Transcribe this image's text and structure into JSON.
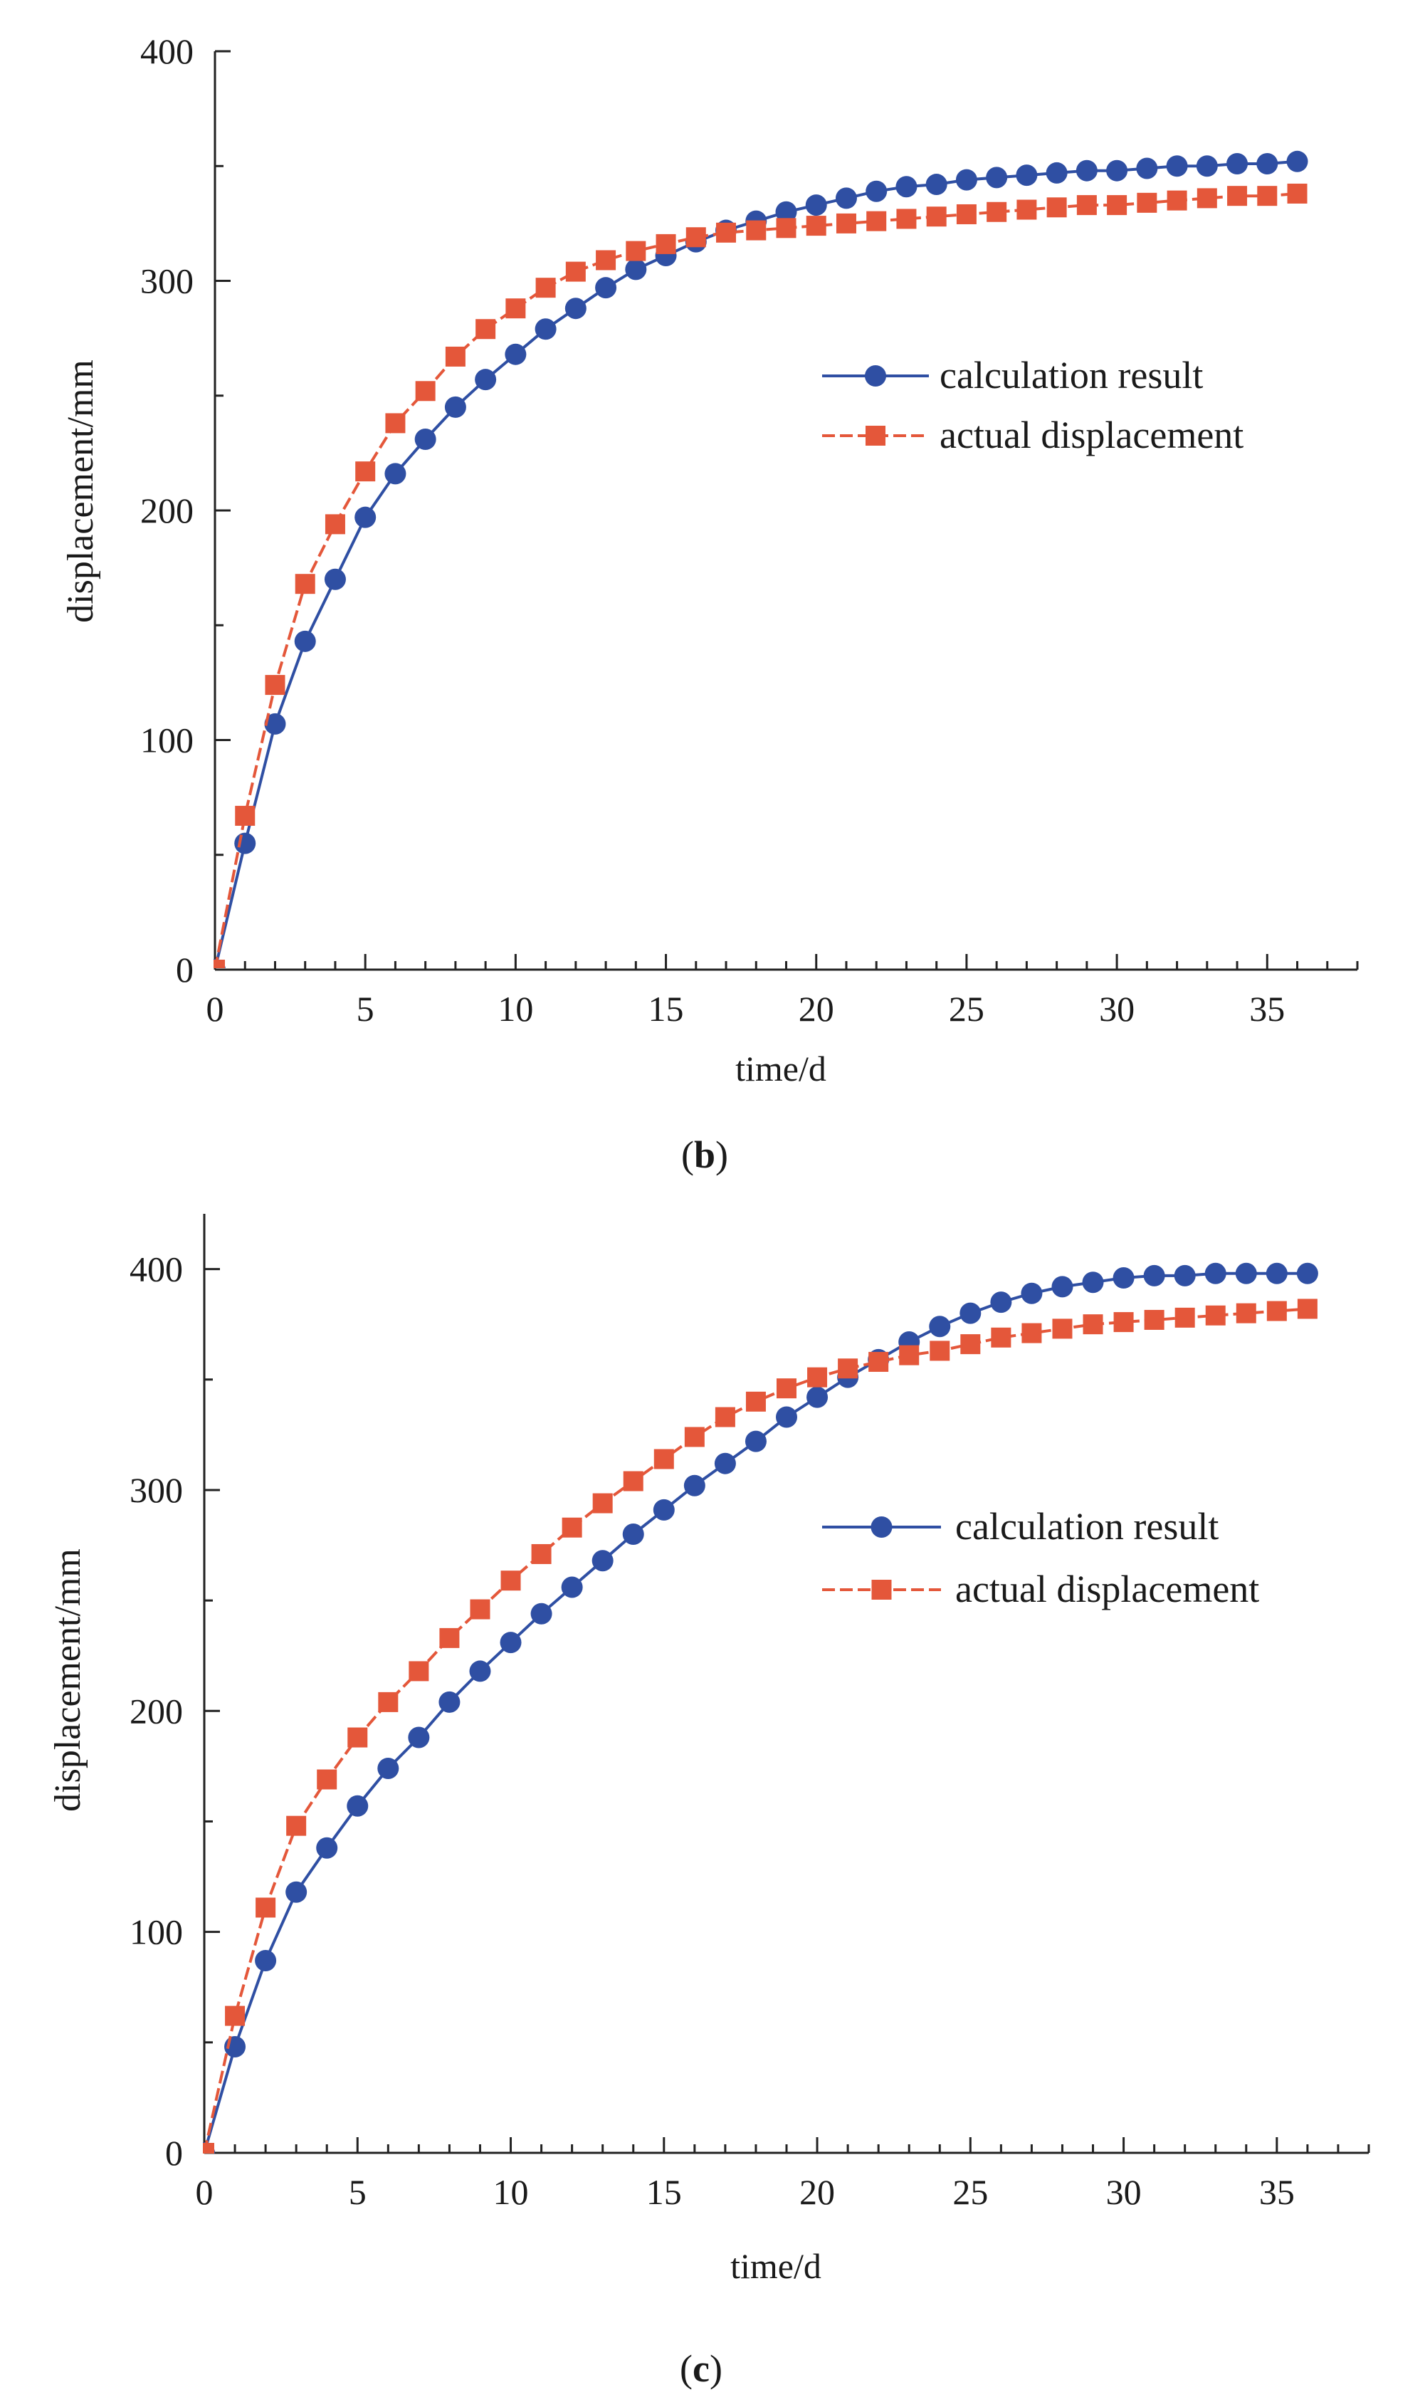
{
  "chart_data": [
    {
      "type": "line",
      "panel": "b",
      "caption_open": "(",
      "caption_letter": "b",
      "caption_close": ")",
      "xlabel": "time/d",
      "ylabel": "displacement/mm",
      "xlim": [
        0,
        38
      ],
      "ylim": [
        0,
        400
      ],
      "xticks": [
        0,
        5,
        10,
        15,
        20,
        25,
        30,
        35
      ],
      "yticks": [
        0,
        100,
        200,
        300,
        400
      ],
      "legend_position": "center-right",
      "x": [
        0,
        1,
        2,
        3,
        4,
        5,
        6,
        7,
        8,
        9,
        10,
        11,
        12,
        13,
        14,
        15,
        16,
        17,
        18,
        19,
        20,
        21,
        22,
        23,
        24,
        25,
        26,
        27,
        28,
        29,
        30,
        31,
        32,
        33,
        34,
        35,
        36
      ],
      "series": [
        {
          "name": "calculation result",
          "color": "#2f4fa3",
          "marker": "circle",
          "line": "solid",
          "values": [
            0,
            55,
            107,
            143,
            170,
            197,
            216,
            231,
            245,
            257,
            268,
            279,
            288,
            297,
            305,
            311,
            317,
            322,
            326,
            330,
            333,
            336,
            339,
            341,
            342,
            344,
            345,
            346,
            347,
            348,
            348,
            349,
            350,
            350,
            351,
            351,
            352
          ]
        },
        {
          "name": "actual displacement",
          "color": "#e4573a",
          "marker": "square",
          "line": "dashed",
          "values": [
            0,
            67,
            124,
            168,
            194,
            217,
            238,
            252,
            267,
            279,
            288,
            297,
            304,
            309,
            313,
            316,
            319,
            321,
            322,
            323,
            324,
            325,
            326,
            327,
            328,
            329,
            330,
            331,
            332,
            333,
            333,
            334,
            335,
            336,
            337,
            337,
            338
          ]
        }
      ]
    },
    {
      "type": "line",
      "panel": "c",
      "caption_open": "(",
      "caption_letter": "c",
      "caption_close": ")",
      "xlabel": "time/d",
      "ylabel": "displacement/mm",
      "xlim": [
        0,
        38
      ],
      "ylim": [
        0,
        425
      ],
      "xticks": [
        0,
        5,
        10,
        15,
        20,
        25,
        30,
        35
      ],
      "yticks": [
        0,
        100,
        200,
        300,
        400
      ],
      "legend_position": "center-right",
      "x": [
        0,
        1,
        2,
        3,
        4,
        5,
        6,
        7,
        8,
        9,
        10,
        11,
        12,
        13,
        14,
        15,
        16,
        17,
        18,
        19,
        20,
        21,
        22,
        23,
        24,
        25,
        26,
        27,
        28,
        29,
        30,
        31,
        32,
        33,
        34,
        35,
        36
      ],
      "series": [
        {
          "name": "calculation result",
          "color": "#2f4fa3",
          "marker": "circle",
          "line": "solid",
          "values": [
            0,
            48,
            87,
            118,
            138,
            157,
            174,
            188,
            204,
            218,
            231,
            244,
            256,
            268,
            280,
            291,
            302,
            312,
            322,
            333,
            342,
            351,
            359,
            367,
            374,
            380,
            385,
            389,
            392,
            394,
            396,
            397,
            397,
            398,
            398,
            398,
            398
          ]
        },
        {
          "name": "actual displacement",
          "color": "#e4573a",
          "marker": "square",
          "line": "dashed",
          "values": [
            0,
            62,
            111,
            148,
            169,
            188,
            204,
            218,
            233,
            246,
            259,
            271,
            283,
            294,
            304,
            314,
            324,
            333,
            340,
            346,
            351,
            355,
            358,
            361,
            363,
            366,
            369,
            371,
            373,
            375,
            376,
            377,
            378,
            379,
            380,
            381,
            382
          ]
        }
      ]
    }
  ]
}
